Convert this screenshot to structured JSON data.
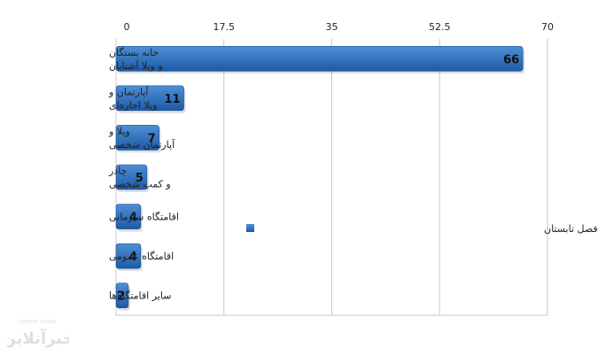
{
  "chart_data": {
    "type": "bar",
    "orientation": "horizontal",
    "categories": [
      [
        "خانه بستگان",
        "و ویلا آشنایان"
      ],
      [
        "آپارتمان و",
        "ویلا اجاره‌ای"
      ],
      [
        "ویلا و",
        "آپارتمان شخصی"
      ],
      [
        "چادر",
        "و کمپ شخصی"
      ],
      [
        "اقامتگاه سازمانی"
      ],
      [
        "اقامتگاه عمومی"
      ],
      [
        "سایر اقامتگاه‌ها"
      ]
    ],
    "series": [
      {
        "name": "شکل اقامت در سفرهای داخلی ایرانی‌ها در فصل تابستان",
        "values": [
          66,
          11,
          7,
          5,
          4,
          4,
          2
        ],
        "color": "#2f6fb8"
      }
    ],
    "xlim": [
      0,
      70
    ],
    "x_ticks": [
      "0",
      "17.5",
      "35",
      "52.5",
      "70"
    ],
    "tick_position": "top",
    "grid": true,
    "legend_position": "right-middle",
    "value_labels": [
      "66",
      "11",
      "7",
      "5",
      "4",
      "4",
      "2"
    ]
  },
  "watermark": {
    "brand": "خبرآنلاین",
    "latin": "KHABAR ONLINE"
  }
}
